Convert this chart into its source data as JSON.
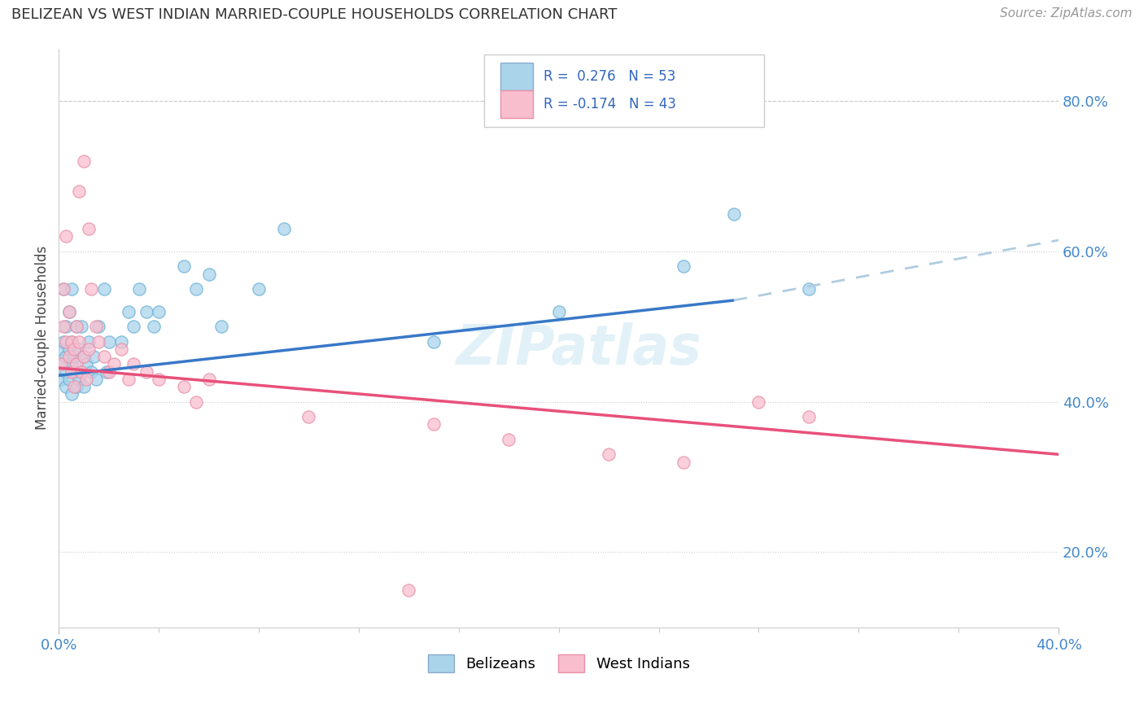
{
  "title": "BELIZEAN VS WEST INDIAN MARRIED-COUPLE HOUSEHOLDS CORRELATION CHART",
  "source": "Source: ZipAtlas.com",
  "ylabel": "Married-couple Households",
  "right_yticks": [
    "20.0%",
    "40.0%",
    "60.0%",
    "80.0%"
  ],
  "right_ytick_vals": [
    0.2,
    0.4,
    0.6,
    0.8
  ],
  "xlim": [
    0.0,
    0.4
  ],
  "ylim": [
    0.1,
    0.87
  ],
  "belizean_color": "#7ec8e3",
  "west_indian_color": "#f4a7b9",
  "trend_belizean_color": "#3878c8",
  "trend_west_indian_color": "#e8507a",
  "trend_extension_color": "#b0cce0",
  "watermark": "ZIPatlas",
  "bel_R": 0.276,
  "bel_N": 53,
  "wi_R": -0.174,
  "wi_N": 43,
  "bel_trend_x0": 0.0,
  "bel_trend_x1": 0.27,
  "bel_trend_y0": 0.435,
  "bel_trend_y1": 0.535,
  "ext_trend_x0": 0.27,
  "ext_trend_x1": 0.4,
  "ext_trend_y0": 0.535,
  "ext_trend_y1": 0.615,
  "wi_trend_x0": 0.0,
  "wi_trend_x1": 0.4,
  "wi_trend_y0": 0.445,
  "wi_trend_y1": 0.33
}
